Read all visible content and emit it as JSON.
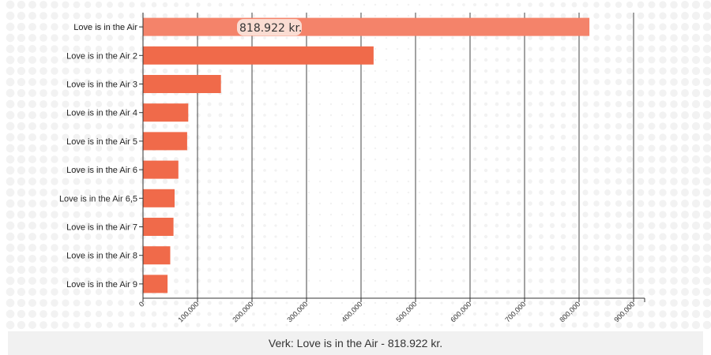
{
  "chart_data": {
    "type": "bar",
    "orientation": "horizontal",
    "categories": [
      "Love is in the Air",
      "Love is in the Air 2",
      "Love is in the Air 3",
      "Love is in the Air 4",
      "Love is in the Air 5",
      "Love is in the Air 6",
      "Love is in the Air 6,5",
      "Love is in the Air 7",
      "Love is in the Air 8",
      "Love is in the Air 9"
    ],
    "values": [
      818922,
      423000,
      143000,
      83000,
      81000,
      65000,
      58000,
      56000,
      50000,
      45000
    ],
    "xlim": [
      0,
      900000
    ],
    "x_ticks": [
      0,
      100000,
      200000,
      300000,
      400000,
      500000,
      600000,
      700000,
      800000,
      900000
    ],
    "x_tick_labels": [
      "0",
      "100,000",
      "200,000",
      "300,000",
      "400,000",
      "500,000",
      "600,000",
      "700,000",
      "800,000",
      "900,000"
    ],
    "grid": true,
    "bar_color": "#f06a4a",
    "highlight_color": "#f4836a",
    "highlight_index": 0,
    "tooltip": {
      "text": "818.922 kr."
    }
  },
  "footer": {
    "text": "Verk: Love is in the Air - 818.922 kr."
  }
}
